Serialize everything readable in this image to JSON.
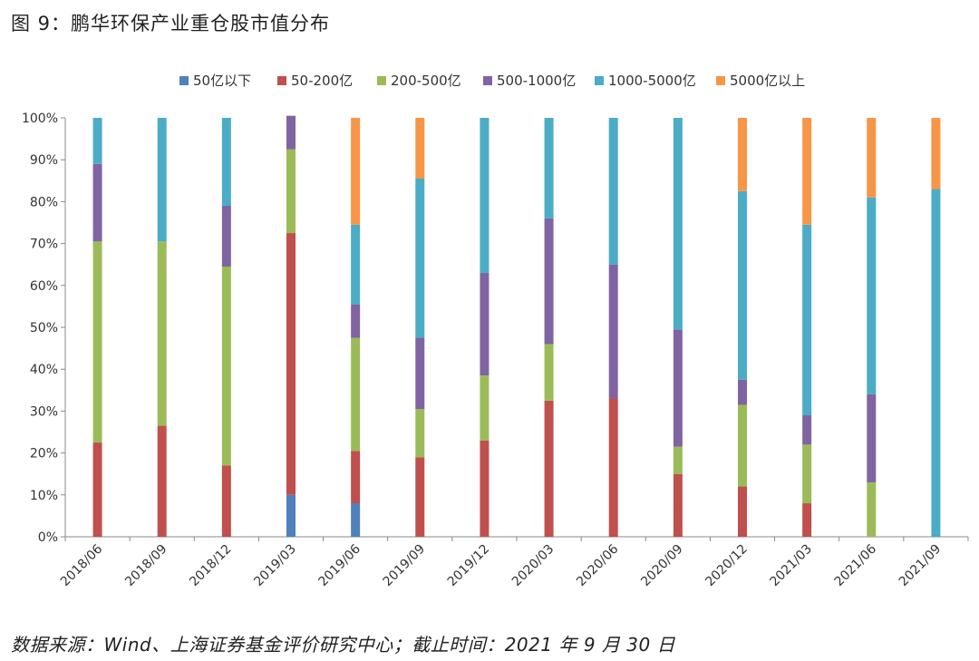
{
  "figure": {
    "title": "图 9：鹏华环保产业重仓股市值分布",
    "source": "数据来源：Wind、上海证券基金评价研究中心；截止时间：2021 年 9 月 30 日"
  },
  "chart_data": {
    "type": "bar",
    "stacked": true,
    "percent": true,
    "categories": [
      "2018/06",
      "2018/09",
      "2018/12",
      "2019/03",
      "2019/06",
      "2019/09",
      "2019/12",
      "2020/03",
      "2020/06",
      "2020/09",
      "2020/12",
      "2021/03",
      "2021/06",
      "2021/09"
    ],
    "ylim": [
      0,
      100
    ],
    "yticks": [
      "0%",
      "10%",
      "20%",
      "30%",
      "40%",
      "50%",
      "60%",
      "70%",
      "80%",
      "90%",
      "100%"
    ],
    "legend_position": "top",
    "grid": false,
    "series": [
      {
        "name": "50亿以下",
        "color": "#4f81bd",
        "values": [
          0,
          0,
          0,
          10,
          8,
          0,
          0,
          0,
          0,
          0,
          0,
          0,
          0,
          0
        ]
      },
      {
        "name": "50-200亿",
        "color": "#c0504d",
        "values": [
          22.5,
          26.5,
          17,
          62.5,
          12.5,
          19,
          23,
          32.5,
          33,
          15,
          12,
          8,
          0,
          0
        ]
      },
      {
        "name": "200-500亿",
        "color": "#9bbb59",
        "values": [
          48,
          44,
          47.5,
          20,
          27,
          11.5,
          15.5,
          13.5,
          0,
          6.5,
          19.5,
          14,
          13,
          0
        ]
      },
      {
        "name": "500-1000亿",
        "color": "#8064a2",
        "values": [
          18.5,
          0,
          14.5,
          8,
          8,
          17,
          24.5,
          30,
          32,
          28,
          6,
          7,
          21,
          0
        ]
      },
      {
        "name": "1000-5000亿",
        "color": "#4bacc6",
        "values": [
          11,
          29.5,
          21,
          0,
          19,
          38,
          37,
          24,
          35,
          50.5,
          45,
          45.5,
          47,
          83
        ]
      },
      {
        "name": "5000亿以上",
        "color": "#f79646",
        "values": [
          0,
          0,
          0,
          0,
          25.5,
          14.5,
          0,
          0,
          0,
          0,
          17.5,
          25.5,
          19,
          17
        ]
      }
    ]
  }
}
